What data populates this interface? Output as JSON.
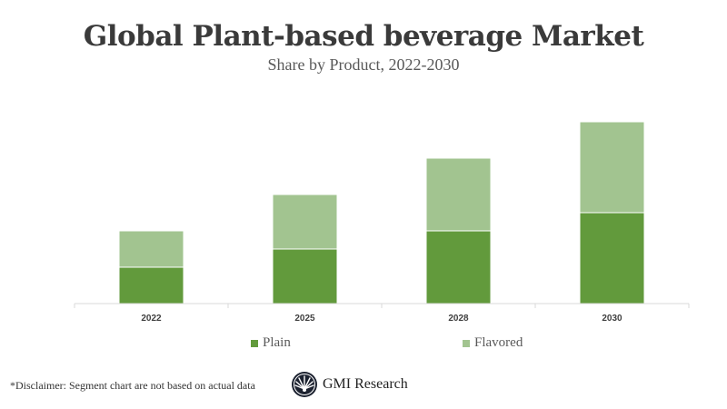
{
  "chart_data": {
    "type": "bar",
    "stacked": true,
    "title": "Global Plant-based beverage Market",
    "subtitle": "Share by Product, 2022-2030",
    "categories": [
      "2022",
      "2025",
      "2028",
      "2030"
    ],
    "series": [
      {
        "name": "Plain",
        "values": [
          2,
          3,
          4,
          5
        ],
        "color": "#629a3c"
      },
      {
        "name": "Flavored",
        "values": [
          2,
          3,
          4,
          5
        ],
        "color": "#a2c490"
      }
    ],
    "xlabel": "",
    "ylabel": "",
    "ylim": [
      0,
      10
    ],
    "y_axis_shown": false,
    "grid": false,
    "legend_position": "bottom"
  },
  "footer": {
    "disclaimer": "*Disclaimer:  Segment chart are not based on actual data",
    "logo_text": "GMI Research"
  }
}
